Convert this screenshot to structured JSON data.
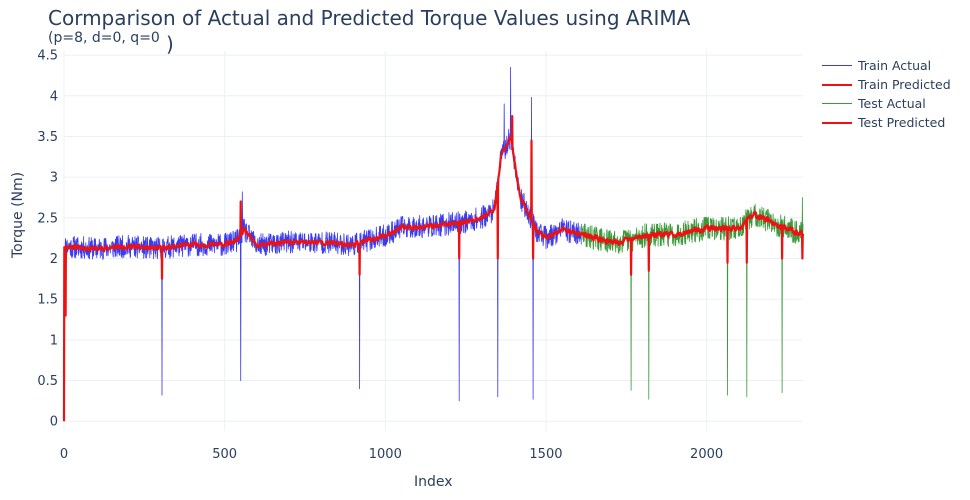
{
  "chart_data": {
    "type": "line",
    "title": "Cormparison of Actual and Predicted Torque Values using ARIMA",
    "subtitle": "(p=8, d=0, q=0",
    "subtitle_suffix": ")",
    "xlabel": "Index",
    "ylabel": "Torque (Nm)",
    "xlim": [
      0,
      2300
    ],
    "ylim": [
      -0.12,
      4.55
    ],
    "x_ticks": [
      0,
      500,
      1000,
      1500,
      2000
    ],
    "y_ticks": [
      0,
      0.5,
      1,
      1.5,
      2,
      2.5,
      3,
      3.5,
      4,
      4.5
    ],
    "x_tick_labels": [
      "0",
      "500",
      "1000",
      "1500",
      "2000"
    ],
    "y_tick_labels": [
      "0",
      "0.5",
      "1",
      "1.5",
      "2",
      "2.5",
      "3",
      "3.5",
      "4",
      "4.5"
    ],
    "grid": true,
    "legend_position": "top-right",
    "series": [
      {
        "name": "Train Actual",
        "color": "#3a3aee",
        "x_range": [
          0,
          1610
        ],
        "base": [
          [
            0,
            2.15
          ],
          [
            100,
            2.12
          ],
          [
            200,
            2.15
          ],
          [
            280,
            2.12
          ],
          [
            400,
            2.17
          ],
          [
            500,
            2.17
          ],
          [
            540,
            2.22
          ],
          [
            560,
            2.35
          ],
          [
            600,
            2.16
          ],
          [
            700,
            2.2
          ],
          [
            800,
            2.2
          ],
          [
            900,
            2.17
          ],
          [
            1000,
            2.28
          ],
          [
            1050,
            2.38
          ],
          [
            1150,
            2.4
          ],
          [
            1250,
            2.45
          ],
          [
            1300,
            2.5
          ],
          [
            1340,
            2.6
          ],
          [
            1360,
            3.25
          ],
          [
            1390,
            3.5
          ],
          [
            1420,
            2.75
          ],
          [
            1440,
            2.6
          ],
          [
            1470,
            2.35
          ],
          [
            1500,
            2.25
          ],
          [
            1550,
            2.35
          ],
          [
            1610,
            2.3
          ]
        ],
        "noise": 0.14,
        "spikes": [
          [
            305,
            0.32
          ],
          [
            550,
            0.5
          ],
          [
            920,
            0.4
          ],
          [
            1230,
            0.25
          ],
          [
            1350,
            0.3
          ],
          [
            1460,
            0.27
          ],
          [
            1390,
            4.35
          ],
          [
            1455,
            3.98
          ],
          [
            555,
            2.82
          ],
          [
            1370,
            3.9
          ]
        ]
      },
      {
        "name": "Train Predicted",
        "color": "#ee1111",
        "x_range": [
          0,
          1610
        ],
        "base": [
          [
            0,
            2.15
          ],
          [
            100,
            2.12
          ],
          [
            200,
            2.15
          ],
          [
            280,
            2.12
          ],
          [
            400,
            2.17
          ],
          [
            500,
            2.17
          ],
          [
            540,
            2.22
          ],
          [
            560,
            2.35
          ],
          [
            600,
            2.16
          ],
          [
            700,
            2.2
          ],
          [
            800,
            2.2
          ],
          [
            900,
            2.17
          ],
          [
            1000,
            2.28
          ],
          [
            1050,
            2.38
          ],
          [
            1150,
            2.4
          ],
          [
            1250,
            2.45
          ],
          [
            1300,
            2.5
          ],
          [
            1340,
            2.6
          ],
          [
            1360,
            3.25
          ],
          [
            1390,
            3.5
          ],
          [
            1420,
            2.75
          ],
          [
            1440,
            2.6
          ],
          [
            1470,
            2.35
          ],
          [
            1500,
            2.25
          ],
          [
            1550,
            2.35
          ],
          [
            1610,
            2.3
          ]
        ],
        "noise": 0.05,
        "spikes": [
          [
            0,
            0.0
          ],
          [
            5,
            1.3
          ],
          [
            305,
            1.75
          ],
          [
            550,
            2.7
          ],
          [
            920,
            1.8
          ],
          [
            1230,
            2.0
          ],
          [
            1350,
            2.0
          ],
          [
            1395,
            3.75
          ],
          [
            1460,
            2.0
          ],
          [
            1455,
            3.45
          ]
        ]
      },
      {
        "name": "Test Actual",
        "color": "#3a9a3a",
        "x_range": [
          1610,
          2300
        ],
        "base": [
          [
            1610,
            2.3
          ],
          [
            1700,
            2.2
          ],
          [
            1760,
            2.22
          ],
          [
            1800,
            2.28
          ],
          [
            1900,
            2.3
          ],
          [
            2000,
            2.37
          ],
          [
            2100,
            2.37
          ],
          [
            2150,
            2.55
          ],
          [
            2200,
            2.45
          ],
          [
            2300,
            2.3
          ]
        ],
        "noise": 0.15,
        "spikes": [
          [
            1765,
            0.38
          ],
          [
            1820,
            0.27
          ],
          [
            2065,
            0.32
          ],
          [
            2125,
            0.3
          ],
          [
            2235,
            0.35
          ],
          [
            2298,
            0.38
          ],
          [
            2298,
            2.75
          ]
        ]
      },
      {
        "name": "Test Predicted",
        "color": "#ee1111",
        "x_range": [
          1610,
          2300
        ],
        "base": [
          [
            1610,
            2.3
          ],
          [
            1700,
            2.2
          ],
          [
            1760,
            2.22
          ],
          [
            1800,
            2.28
          ],
          [
            1900,
            2.3
          ],
          [
            2000,
            2.37
          ],
          [
            2100,
            2.37
          ],
          [
            2150,
            2.55
          ],
          [
            2200,
            2.45
          ],
          [
            2300,
            2.3
          ]
        ],
        "noise": 0.06,
        "spikes": [
          [
            1765,
            1.8
          ],
          [
            1820,
            1.85
          ],
          [
            2065,
            1.95
          ],
          [
            2125,
            1.95
          ],
          [
            2235,
            2.0
          ],
          [
            2298,
            2.0
          ]
        ]
      }
    ]
  }
}
